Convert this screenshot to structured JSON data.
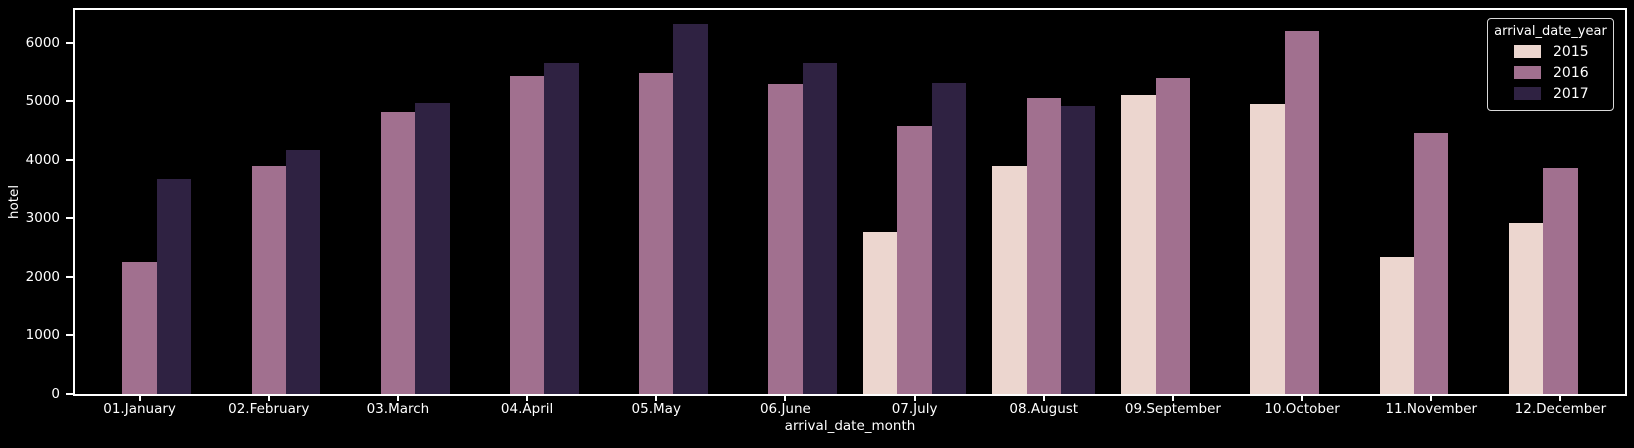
{
  "chart_data": {
    "type": "bar",
    "title": "",
    "xlabel": "arrival_date_month",
    "ylabel": "hotel",
    "categories": [
      "01.January",
      "02.February",
      "03.March",
      "04.April",
      "05.May",
      "06.June",
      "07.July",
      "08.August",
      "09.September",
      "10.October",
      "11.November",
      "12.December"
    ],
    "series": [
      {
        "name": "2015",
        "color": "#ecd6cf",
        "values": [
          null,
          null,
          null,
          null,
          null,
          null,
          2776,
          3889,
          5114,
          4957,
          2340,
          2920
        ]
      },
      {
        "name": "2016",
        "color": "#a1708f",
        "values": [
          2248,
          3891,
          4824,
          5428,
          5478,
          5292,
          4572,
          5063,
          5394,
          6203,
          4454,
          3860
        ]
      },
      {
        "name": "2017",
        "color": "#2f2242",
        "values": [
          3681,
          4177,
          4970,
          5661,
          6313,
          5647,
          5313,
          4925,
          null,
          null,
          null,
          null
        ]
      }
    ],
    "ylim": [
      0,
      6560
    ],
    "yticks": [
      0,
      1000,
      2000,
      3000,
      4000,
      5000,
      6000
    ],
    "legend": {
      "title": "arrival_date_year",
      "position": "upper right"
    },
    "grid": false,
    "background_color": "#000000",
    "text_color": "#ffffff",
    "spine_color": "#ffffff"
  }
}
